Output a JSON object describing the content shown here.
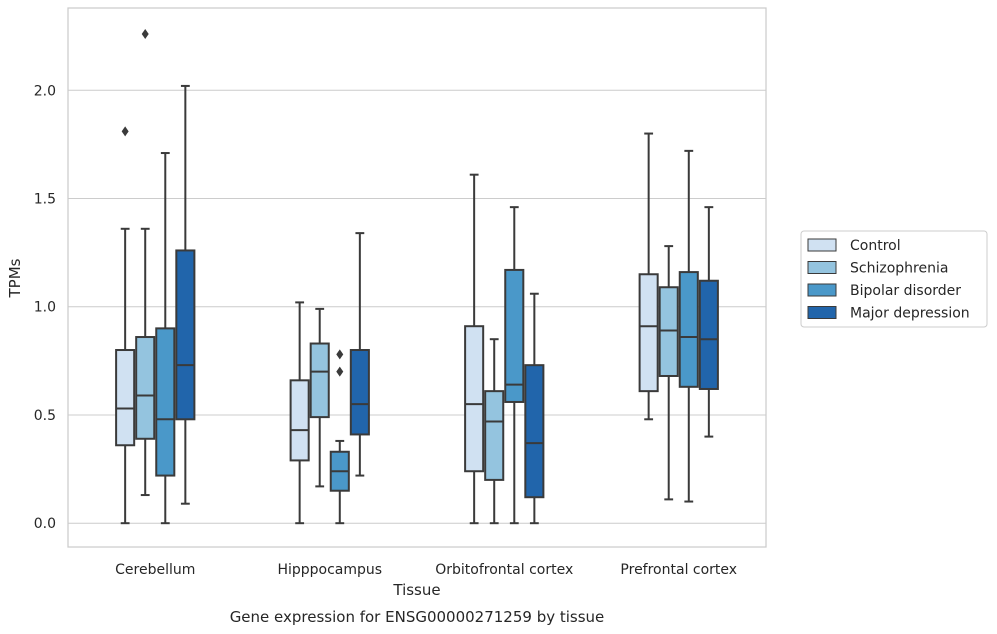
{
  "chart_data": {
    "type": "box",
    "xlabel": "Tissue",
    "ylabel": "TPMs",
    "caption": "Gene expression for ENSG00000271259 by tissue",
    "ylim": [
      -0.11,
      2.38
    ],
    "yticks": [
      0.0,
      0.5,
      1.0,
      1.5,
      2.0
    ],
    "ytick_labels": [
      "0.0",
      "0.5",
      "1.0",
      "1.5",
      "2.0"
    ],
    "grid": "horizontal",
    "legend_position": "right",
    "categories": [
      "Cerebellum",
      "Hipppocampus",
      "Orbitofrontal cortex",
      "Prefrontal cortex"
    ],
    "series": [
      {
        "name": "Control",
        "color": "#d0e1f2",
        "boxes": [
          {
            "whisker_low": 0.0,
            "q1": 0.36,
            "median": 0.53,
            "q3": 0.8,
            "whisker_high": 1.36,
            "outliers": [
              1.81
            ]
          },
          {
            "whisker_low": 0.0,
            "q1": 0.29,
            "median": 0.43,
            "q3": 0.66,
            "whisker_high": 1.02,
            "outliers": []
          },
          {
            "whisker_low": 0.0,
            "q1": 0.24,
            "median": 0.55,
            "q3": 0.91,
            "whisker_high": 1.61,
            "outliers": []
          },
          {
            "whisker_low": 0.48,
            "q1": 0.61,
            "median": 0.91,
            "q3": 1.15,
            "whisker_high": 1.8,
            "outliers": []
          }
        ]
      },
      {
        "name": "Schizophrenia",
        "color": "#94c4df",
        "boxes": [
          {
            "whisker_low": 0.13,
            "q1": 0.39,
            "median": 0.59,
            "q3": 0.86,
            "whisker_high": 1.36,
            "outliers": [
              2.26
            ]
          },
          {
            "whisker_low": 0.17,
            "q1": 0.49,
            "median": 0.7,
            "q3": 0.83,
            "whisker_high": 0.99,
            "outliers": []
          },
          {
            "whisker_low": 0.0,
            "q1": 0.2,
            "median": 0.47,
            "q3": 0.61,
            "whisker_high": 0.85,
            "outliers": []
          },
          {
            "whisker_low": 0.11,
            "q1": 0.68,
            "median": 0.89,
            "q3": 1.09,
            "whisker_high": 1.28,
            "outliers": []
          }
        ]
      },
      {
        "name": "Bipolar disorder",
        "color": "#4a98c9",
        "boxes": [
          {
            "whisker_low": 0.0,
            "q1": 0.22,
            "median": 0.48,
            "q3": 0.9,
            "whisker_high": 1.71,
            "outliers": []
          },
          {
            "whisker_low": 0.0,
            "q1": 0.15,
            "median": 0.24,
            "q3": 0.33,
            "whisker_high": 0.38,
            "outliers": [
              0.7,
              0.78
            ]
          },
          {
            "whisker_low": 0.0,
            "q1": 0.56,
            "median": 0.64,
            "q3": 1.17,
            "whisker_high": 1.46,
            "outliers": []
          },
          {
            "whisker_low": 0.1,
            "q1": 0.63,
            "median": 0.86,
            "q3": 1.16,
            "whisker_high": 1.72,
            "outliers": []
          }
        ]
      },
      {
        "name": "Major depression",
        "color": "#2165ab",
        "boxes": [
          {
            "whisker_low": 0.09,
            "q1": 0.48,
            "median": 0.73,
            "q3": 1.26,
            "whisker_high": 2.02,
            "outliers": []
          },
          {
            "whisker_low": 0.22,
            "q1": 0.41,
            "median": 0.55,
            "q3": 0.8,
            "whisker_high": 1.34,
            "outliers": []
          },
          {
            "whisker_low": 0.0,
            "q1": 0.12,
            "median": 0.37,
            "q3": 0.73,
            "whisker_high": 1.06,
            "outliers": []
          },
          {
            "whisker_low": 0.4,
            "q1": 0.62,
            "median": 0.85,
            "q3": 1.12,
            "whisker_high": 1.46,
            "outliers": []
          }
        ]
      }
    ]
  }
}
